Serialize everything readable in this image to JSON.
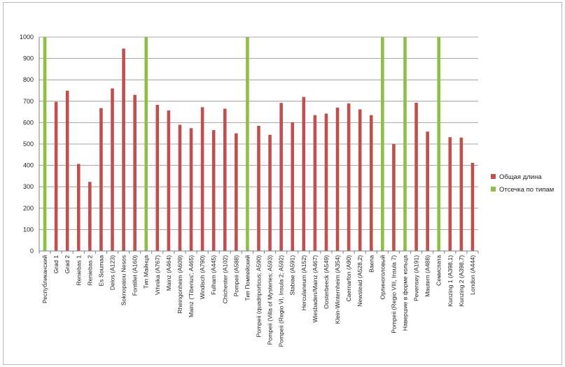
{
  "chart_data": {
    "type": "bar",
    "ylim": [
      0,
      1000
    ],
    "yticks": [
      0,
      100,
      200,
      300,
      400,
      500,
      600,
      700,
      800,
      900,
      1000
    ],
    "grid": "horizontal",
    "legend_position": "right",
    "categories": [
      "Республиканский",
      "Grad 1",
      "Grad 2",
      "Reniebas 1",
      "Reniebas 2",
      "Es Soumaa",
      "Delos (A123)",
      "Soknopaiou Nesos",
      "Fontillet (A160)",
      "Тип Майнца",
      "Vrhnika (A767)",
      "Mainz (A464)",
      "Rheingonheim (A609)",
      "Mainz ('Tiberius'; A465)",
      "Windisch (A790)",
      "Fulham (A445)",
      "Chichester (A102)",
      "Pompeii (A588)",
      "Тип Помпейский",
      "Pompeii (quadriporticus; A590)",
      "Pompeii (Villa of Mysteries; A593)",
      "Pompeii (Regio VI, Insula 2; A592)",
      "Stabiae (A591)",
      "Herculaneum (A152)",
      "Wiesbaden/Mainz (A467)",
      "Oosterbeeck (A549)",
      "Klein-Winternheim (A354)",
      "Caernarfon (A90)",
      "Newstead (A528,2)",
      "Baena",
      "Орлиноголовый",
      "Pompeii (Regio VIII, Insula 7)",
      "Навершие в форме кольца",
      "Pevensey (A191)",
      "Mautern (A488)",
      "Семиспата",
      "Kunzing 1 (A398,1)",
      "Kunzing 2 (A398,7)",
      "London (A444)"
    ],
    "series": [
      {
        "name": "Общая длина",
        "color": "#c0504d",
        "values": [
          null,
          697,
          749,
          407,
          323,
          668,
          760,
          946,
          730,
          null,
          683,
          657,
          590,
          574,
          672,
          565,
          665,
          550,
          null,
          585,
          543,
          692,
          602,
          720,
          635,
          642,
          670,
          690,
          662,
          635,
          null,
          500,
          null,
          693,
          558,
          null,
          532,
          530,
          412
        ]
      },
      {
        "name": "Отсечка по типам",
        "color": "#8cbf44",
        "values": [
          1000,
          null,
          null,
          null,
          null,
          null,
          null,
          null,
          null,
          1000,
          null,
          null,
          null,
          null,
          null,
          null,
          null,
          null,
          1000,
          null,
          null,
          null,
          null,
          null,
          null,
          null,
          null,
          null,
          null,
          null,
          1000,
          null,
          1000,
          null,
          null,
          1000,
          null,
          null,
          null
        ]
      }
    ]
  }
}
